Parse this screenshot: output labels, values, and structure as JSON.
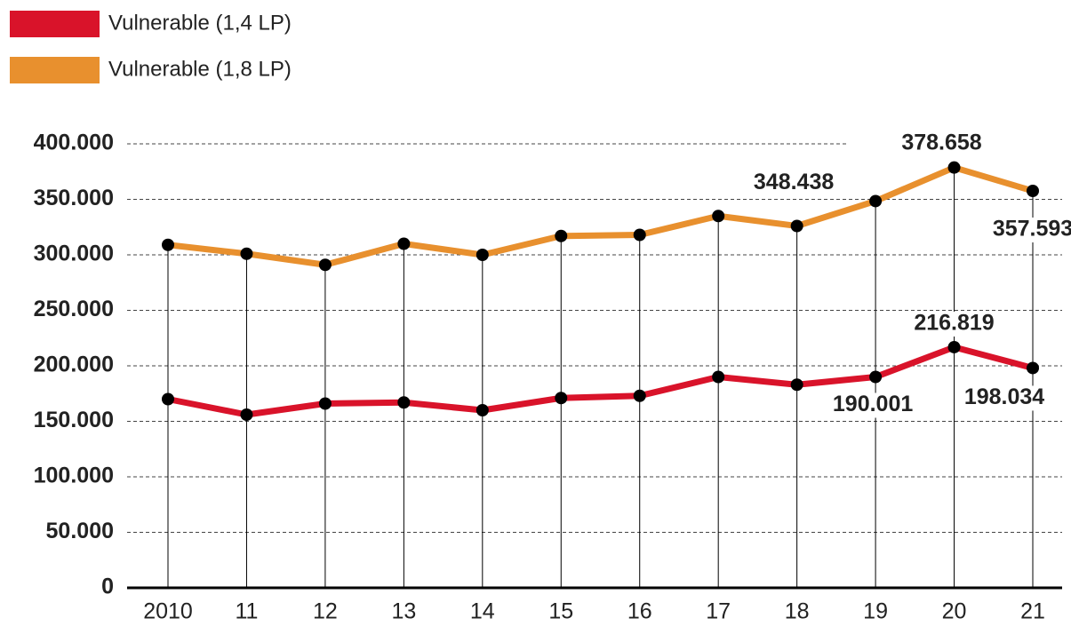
{
  "chart_data": {
    "type": "line",
    "categories": [
      "2010",
      "11",
      "12",
      "13",
      "14",
      "15",
      "16",
      "17",
      "18",
      "19",
      "20",
      "21"
    ],
    "series": [
      {
        "name": "Vulnerable (1,4 LP)",
        "color": "#d9132a",
        "values": [
          170000,
          156000,
          166000,
          167000,
          160000,
          171000,
          173000,
          190000,
          183000,
          190001,
          216819,
          198034
        ],
        "value_labels": [
          null,
          null,
          null,
          null,
          null,
          null,
          null,
          null,
          null,
          "190.001",
          "216.819",
          "198.034"
        ]
      },
      {
        "name": "Vulnerable (1,8 LP)",
        "color": "#e8902e",
        "values": [
          309000,
          301000,
          291000,
          310000,
          300000,
          317000,
          318000,
          335000,
          326000,
          348438,
          378658,
          357593
        ],
        "value_labels": [
          null,
          null,
          null,
          null,
          null,
          null,
          null,
          null,
          null,
          "348.438",
          "378.658",
          "357.593"
        ]
      }
    ],
    "ylim": [
      0,
      400000
    ],
    "yticks": [
      0,
      {
        "value": 50000,
        "label": "50.000"
      },
      {
        "value": 100000,
        "label": "100.000"
      },
      {
        "value": 150000,
        "label": "150.000"
      },
      {
        "value": 200000,
        "label": "200.000"
      },
      {
        "value": 250000,
        "label": "250.000"
      },
      {
        "value": 300000,
        "label": "300.000"
      },
      {
        "value": 350000,
        "label": "350.000"
      },
      {
        "value": 400000,
        "label": "400.000"
      }
    ],
    "grid": true
  }
}
